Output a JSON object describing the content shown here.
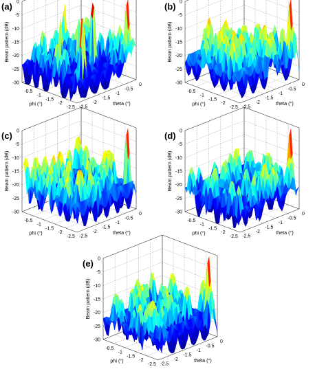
{
  "chart_data": [
    {
      "type": "surface",
      "panel_label": "(a)",
      "zlabel": "Beam pattern (dB)",
      "xlabel": "phi (°)",
      "ylabel": "theta (°)",
      "zticks": [
        "0",
        "-5",
        "-10",
        "-15",
        "-20",
        "-25",
        "-30"
      ],
      "zlim": [
        -30,
        0
      ],
      "xticks": [
        "-0.5",
        "-1",
        "-1.5",
        "-2",
        "-2.5"
      ],
      "yticks": [
        "0",
        "-0.5",
        "-1",
        "-1.5",
        "-2",
        "-2.5"
      ],
      "peaks": [
        {
          "phi": -0.3,
          "theta": -2.4,
          "value": 0
        },
        {
          "phi": -1.0,
          "theta": -1.6,
          "value": 0
        },
        {
          "phi": -2.3,
          "theta": -1.6,
          "value": -5
        },
        {
          "phi": -0.4,
          "theta": -0.6,
          "value": 0
        },
        {
          "phi": -1.4,
          "theta": -0.6,
          "value": -5
        },
        {
          "phi": -1.2,
          "theta": -1.2,
          "value": -5
        }
      ],
      "floor_level": -14,
      "colormap": [
        "#00007f",
        "#0000ff",
        "#00ffff",
        "#ffff00",
        "#ff0000",
        "#7f0000"
      ]
    },
    {
      "type": "surface",
      "panel_label": "(b)",
      "zlabel": "Beam pattern (dB)",
      "xlabel": "phi (°)",
      "ylabel": "theta (°)",
      "zticks": [
        "0",
        "-5",
        "-10",
        "-15",
        "-20",
        "-25",
        "-30"
      ],
      "zlim": [
        -30,
        0
      ],
      "xticks": [
        "-0.5",
        "-1",
        "-1.5",
        "-2",
        "-2.5"
      ],
      "yticks": [
        "0",
        "-0.5",
        "-1",
        "-1.5",
        "-2",
        "-2.5"
      ],
      "peaks": [
        {
          "phi": -0.3,
          "theta": -2.4,
          "value": 0
        }
      ],
      "floor_level": -11,
      "colormap": [
        "#00007f",
        "#0000ff",
        "#00ffff",
        "#ffff00",
        "#ff0000",
        "#7f0000"
      ]
    },
    {
      "type": "surface",
      "panel_label": "(c)",
      "zlabel": "Beam pattern (dB)",
      "xlabel": "phi (°)",
      "ylabel": "theta (°)",
      "zticks": [
        "0",
        "-5",
        "-10",
        "-15",
        "-20",
        "-25",
        "-30"
      ],
      "zlim": [
        -30,
        0
      ],
      "xticks": [
        "-0.5",
        "-1",
        "-1.5",
        "-2",
        "-2.5"
      ],
      "yticks": [
        "0",
        "-0.5",
        "-1",
        "-1.5",
        "-2",
        "-2.5"
      ],
      "peaks": [
        {
          "phi": -0.3,
          "theta": -2.4,
          "value": 0
        }
      ],
      "floor_level": -12,
      "colormap": [
        "#00007f",
        "#0000ff",
        "#00ffff",
        "#ffff00",
        "#ff0000",
        "#7f0000"
      ]
    },
    {
      "type": "surface",
      "panel_label": "(d)",
      "zlabel": "Beam pattern (dB)",
      "xlabel": "phi (°)",
      "ylabel": "theta (°)",
      "zticks": [
        "0",
        "-5",
        "-10",
        "-15",
        "-20",
        "-25",
        "-30"
      ],
      "zlim": [
        -30,
        0
      ],
      "xticks": [
        "-0.5",
        "-1",
        "-1.5",
        "-2",
        "-2.5"
      ],
      "yticks": [
        "0",
        "-0.5",
        "-1",
        "-1.5",
        "-2",
        "-2.5"
      ],
      "peaks": [
        {
          "phi": -0.3,
          "theta": -2.4,
          "value": 0
        }
      ],
      "floor_level": -13,
      "colormap": [
        "#00007f",
        "#0000ff",
        "#00ffff",
        "#ffff00",
        "#ff0000",
        "#7f0000"
      ]
    },
    {
      "type": "surface",
      "panel_label": "(e)",
      "zlabel": "Beam pattern (dB)",
      "xlabel": "phi (°)",
      "ylabel": "theta (°)",
      "zticks": [
        "0",
        "-5",
        "-10",
        "-15",
        "-20",
        "-25",
        "-30"
      ],
      "zlim": [
        -30,
        0
      ],
      "xticks": [
        "-0.5",
        "-1",
        "-1.5",
        "-2",
        "-2.5"
      ],
      "yticks": [
        "0",
        "-0.5",
        "-1",
        "-1.5",
        "-2",
        "-2.5"
      ],
      "peaks": [
        {
          "phi": -0.3,
          "theta": -2.4,
          "value": 0
        }
      ],
      "floor_level": -13,
      "colormap": [
        "#00007f",
        "#0000ff",
        "#00ffff",
        "#ffff00",
        "#ff0000",
        "#7f0000"
      ]
    }
  ]
}
